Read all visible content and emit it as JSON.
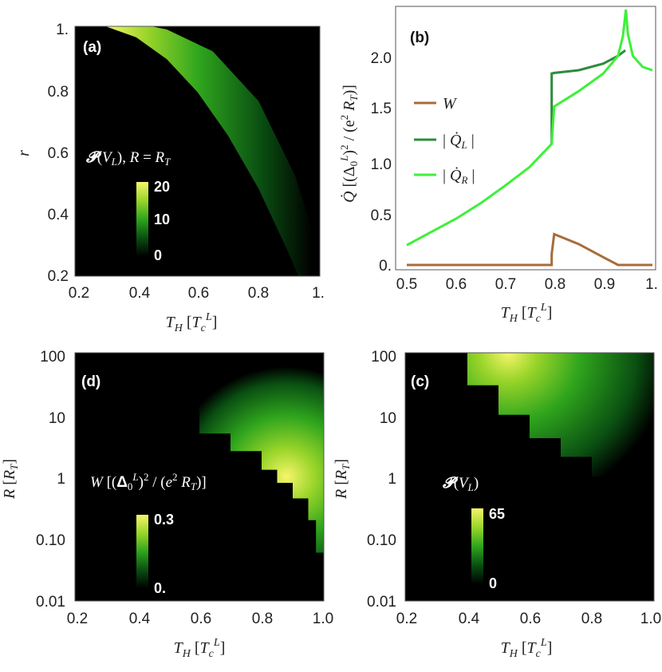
{
  "chart_data": [
    {
      "panel": "(a)",
      "type": "heatmap",
      "xlabel": "T_H [T_c^L]",
      "ylabel": "r",
      "xlim": [
        0.2,
        1.0
      ],
      "ylim": [
        0.2,
        1.0
      ],
      "x_ticks": [
        "0.2",
        "0.4",
        "0.6",
        "0.8",
        "1."
      ],
      "y_ticks": [
        "0.2",
        "0.4",
        "0.6",
        "0.8",
        "1."
      ],
      "colorbar_title": "𝓟(V_L),  R = R_T",
      "colorbar_ticks": [
        "0",
        "10",
        "20"
      ],
      "colorbar_range": [
        0,
        20
      ],
      "boundary": {
        "x": [
          0.3,
          0.4,
          0.5,
          0.6,
          0.7,
          0.8,
          0.9,
          0.93
        ],
        "y": [
          1.0,
          0.965,
          0.895,
          0.79,
          0.65,
          0.48,
          0.27,
          0.2
        ]
      },
      "colormap": [
        "#000000",
        "#0a4f12",
        "#2fa51d",
        "#9ad52a",
        "#f6f56a"
      ]
    },
    {
      "panel": "(b)",
      "type": "line",
      "xlabel": "T_H [T_c^L]",
      "ylabel": "Q̇ [(Δ₀^L)² / (e² R_T)]",
      "xlim": [
        0.5,
        1.0
      ],
      "ylim": [
        0,
        2.35
      ],
      "x_ticks": [
        "0.5",
        "0.6",
        "0.7",
        "0.8",
        "0.9",
        "1."
      ],
      "y_ticks": [
        "0.",
        "0.5",
        "1.0",
        "1.5",
        "2.0"
      ],
      "series": [
        {
          "name": "W",
          "color": "#a86c38",
          "x": [
            0.5,
            0.795,
            0.795,
            0.8,
            0.85,
            0.9,
            0.93,
            1.0
          ],
          "y": [
            0,
            0,
            0.1,
            0.28,
            0.19,
            0.07,
            0,
            0
          ]
        },
        {
          "name": "|Q̇_L|",
          "color": "#2e8b3c",
          "x": [
            0.795,
            0.795,
            0.8,
            0.85,
            0.9,
            0.93,
            0.945
          ],
          "y": [
            1.1,
            1.74,
            1.745,
            1.77,
            1.83,
            1.9,
            1.95
          ]
        },
        {
          "name": "|Q̇_R|",
          "color": "#3ef03a",
          "x": [
            0.5,
            0.55,
            0.6,
            0.65,
            0.7,
            0.75,
            0.795,
            0.8,
            0.85,
            0.9,
            0.93,
            0.94,
            0.946,
            0.95,
            0.96,
            0.98,
            1.0
          ],
          "y": [
            0.18,
            0.3,
            0.42,
            0.56,
            0.72,
            0.89,
            1.1,
            1.44,
            1.58,
            1.74,
            1.9,
            2.08,
            2.32,
            2.1,
            1.9,
            1.8,
            1.77
          ]
        }
      ]
    },
    {
      "panel": "(d)",
      "type": "heatmap",
      "xlabel": "T_H [T_c^L]",
      "ylabel": "R [R_T]",
      "xlim": [
        0.2,
        1.0
      ],
      "ylim": [
        0.01,
        100
      ],
      "yscale": "log",
      "x_ticks": [
        "0.2",
        "0.4",
        "0.6",
        "0.8",
        "1.0"
      ],
      "y_ticks": [
        "0.01",
        "0.10",
        "1",
        "10",
        "100"
      ],
      "colorbar_title": "W [(Δ₀^L)² / (e² R_T)]",
      "colorbar_ticks": [
        "0.",
        "0.3"
      ],
      "colorbar_range": [
        0,
        0.3
      ],
      "boundary": {
        "x": [
          0.33,
          0.4,
          0.5,
          0.6,
          0.7,
          0.8,
          0.85,
          0.9,
          0.95,
          0.975
        ],
        "y": [
          100,
          40,
          12,
          5,
          2.6,
          1.3,
          0.8,
          0.45,
          0.2,
          0.06
        ]
      },
      "colormap": [
        "#000000",
        "#0a4f12",
        "#2fa51d",
        "#9ad52a",
        "#f6f56a"
      ]
    },
    {
      "panel": "(c)",
      "type": "heatmap",
      "xlabel": "T_H [T_c^L]",
      "ylabel": "R [R_T]",
      "xlim": [
        0.2,
        1.0
      ],
      "ylim": [
        0.01,
        100
      ],
      "yscale": "log",
      "x_ticks": [
        "0.2",
        "0.4",
        "0.6",
        "0.8",
        "1.0"
      ],
      "y_ticks": [
        "0.01",
        "0.10",
        "1",
        "10",
        "100"
      ],
      "colorbar_title": "𝓟(V_L)",
      "colorbar_ticks": [
        "0",
        "65"
      ],
      "colorbar_range": [
        0,
        65
      ],
      "boundary": {
        "x": [
          0.31,
          0.4,
          0.5,
          0.6,
          0.7,
          0.8,
          0.85,
          0.9,
          0.95,
          0.975
        ],
        "y": [
          100,
          30,
          10,
          4.2,
          2.1,
          1.0,
          0.6,
          0.35,
          0.15,
          0.05
        ]
      },
      "colormap": [
        "#000000",
        "#0a4f12",
        "#2fa51d",
        "#9ad52a",
        "#f6f56a"
      ]
    }
  ]
}
